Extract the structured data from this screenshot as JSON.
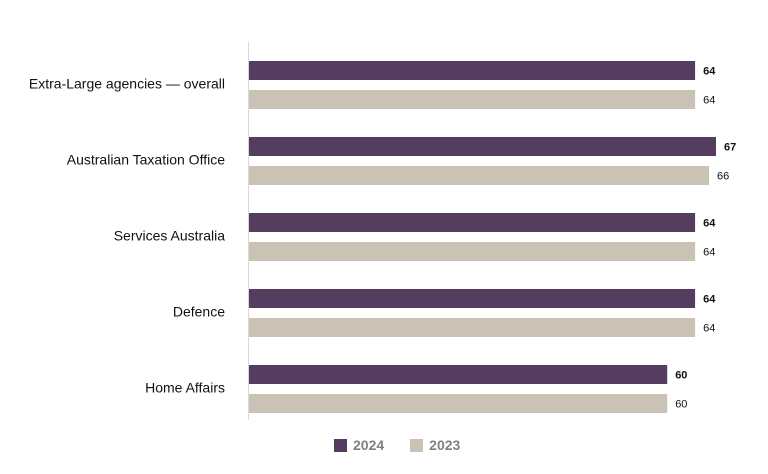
{
  "chart_data": {
    "type": "bar",
    "orientation": "horizontal",
    "categories": [
      "Extra-Large agencies — overall",
      "Australian Taxation Office",
      "Services Australia",
      "Defence",
      "Home Affairs"
    ],
    "series": [
      {
        "name": "2024",
        "values": [
          64,
          67,
          64,
          64,
          60
        ],
        "color": "#553d60",
        "label_weight": "bold"
      },
      {
        "name": "2023",
        "values": [
          64,
          66,
          64,
          64,
          60
        ],
        "color": "#cac3b5",
        "label_weight": "normal"
      }
    ],
    "xlim": [
      0,
      100
    ],
    "title": "",
    "xlabel": "",
    "ylabel": "",
    "grid": false,
    "legend_position": "bottom-center"
  }
}
